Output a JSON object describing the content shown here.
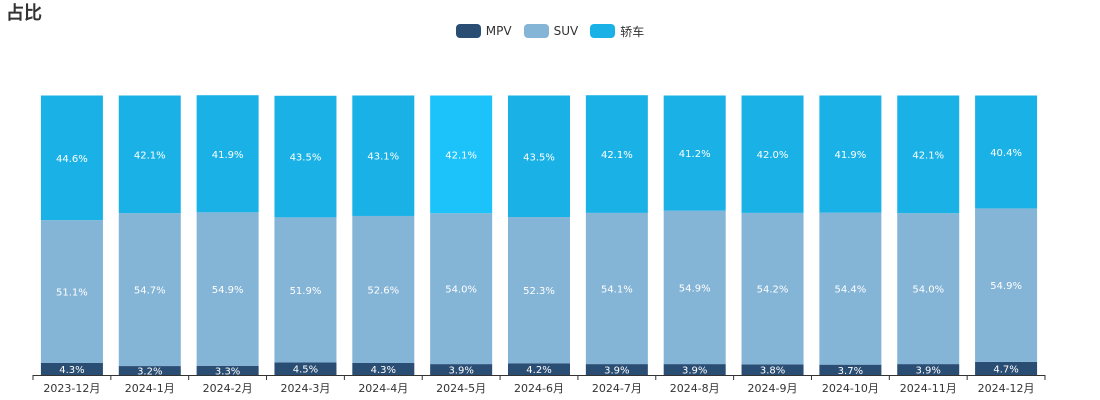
{
  "chart_data": {
    "type": "bar",
    "stacked": true,
    "title": "占比",
    "legend_position": "top-center",
    "categories": [
      "2023-12月",
      "2024-1月",
      "2024-2月",
      "2024-3月",
      "2024-4月",
      "2024-5月",
      "2024-6月",
      "2024-7月",
      "2024-8月",
      "2024-9月",
      "2024-10月",
      "2024-11月",
      "2024-12月"
    ],
    "series": [
      {
        "name": "MPV",
        "color": "#2a4d73",
        "values": [
          4.3,
          3.2,
          3.3,
          4.5,
          4.3,
          3.9,
          4.2,
          3.9,
          3.9,
          3.8,
          3.7,
          3.9,
          4.7
        ],
        "labels": [
          "4.3%",
          "3.2%",
          "3.3%",
          "4.5%",
          "4.3%",
          "3.9%",
          "4.2%",
          "3.9%",
          "3.9%",
          "3.8%",
          "3.7%",
          "3.9%",
          "4.7%"
        ]
      },
      {
        "name": "SUV",
        "color": "#84b4d6",
        "values": [
          51.1,
          54.7,
          54.9,
          51.9,
          52.6,
          54.0,
          52.3,
          54.1,
          54.9,
          54.2,
          54.4,
          54.0,
          54.9
        ],
        "labels": [
          "51.1%",
          "54.7%",
          "54.9%",
          "51.9%",
          "52.6%",
          "54.0%",
          "52.3%",
          "54.1%",
          "54.9%",
          "54.2%",
          "54.4%",
          "54.0%",
          "54.9%"
        ]
      },
      {
        "name": "轿车",
        "color": "#1ab2e6",
        "values": [
          44.6,
          42.1,
          41.9,
          43.5,
          43.1,
          42.1,
          43.5,
          42.1,
          41.2,
          42.0,
          41.9,
          42.1,
          40.4
        ],
        "labels": [
          "44.6%",
          "42.1%",
          "41.9%",
          "43.5%",
          "43.1%",
          "42.1%",
          "43.5%",
          "42.1%",
          "41.2%",
          "42.0%",
          "41.9%",
          "42.1%",
          "40.4%"
        ]
      }
    ],
    "highlight": {
      "category_index": 5,
      "series_index": 2,
      "color": "#1cc3fb"
    },
    "axis_color": "#333333"
  }
}
